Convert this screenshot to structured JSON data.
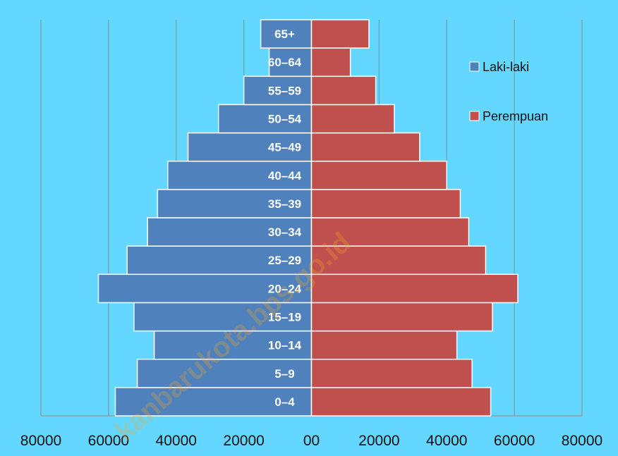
{
  "watermark": "kanbarukota.bps.go.id",
  "colors": {
    "background": "#63d7ff",
    "male": "#4f81bd",
    "female": "#c0504d",
    "grid": "#8a9a9a",
    "bar_border": "#ffffff"
  },
  "chart_data": {
    "type": "bar",
    "orientation": "horizontal",
    "title": "",
    "xlabel": "",
    "ylabel": "",
    "categories": [
      "0–4",
      "5–9",
      "10–14",
      "15–19",
      "20–24",
      "25–29",
      "30–34",
      "35–39",
      "40–44",
      "45–49",
      "50–54",
      "55–59",
      "60–64",
      "65+"
    ],
    "series": [
      {
        "name": "Laki-laki",
        "side": "left",
        "color": "#4f81bd",
        "values": [
          58000,
          51500,
          46500,
          52500,
          63000,
          54500,
          48500,
          45500,
          42500,
          36500,
          27500,
          20000,
          12500,
          15000
        ]
      },
      {
        "name": "Perempuan",
        "side": "right",
        "color": "#c0504d",
        "values": [
          53000,
          47500,
          43000,
          53500,
          61000,
          51500,
          46500,
          44000,
          40000,
          32000,
          24500,
          19000,
          11500,
          17000
        ]
      }
    ],
    "xlim": [
      -80000,
      80000
    ],
    "x_ticks": [
      -80000,
      -60000,
      -40000,
      -20000,
      0,
      20000,
      40000,
      60000,
      80000
    ],
    "x_tick_labels": [
      "80000",
      "60000",
      "40000",
      "20000",
      "00",
      "20000",
      "40000",
      "60000",
      "80000"
    ],
    "grid": true,
    "legend_position": "right"
  }
}
